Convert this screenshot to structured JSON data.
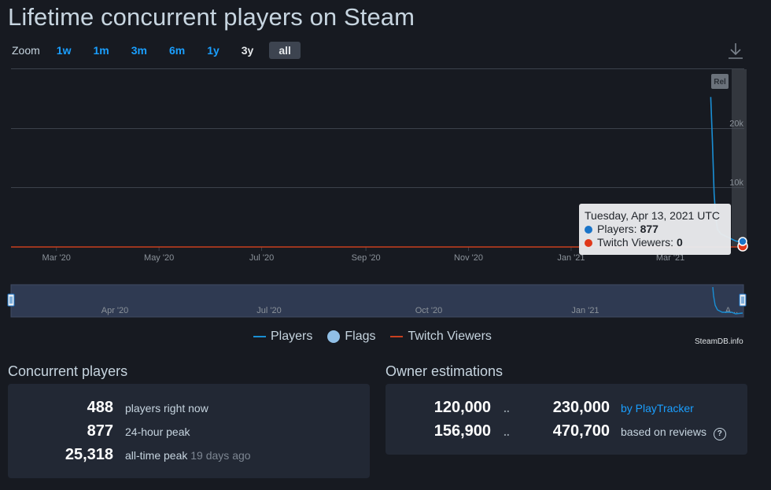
{
  "title": "Lifetime concurrent players on Steam",
  "zoom": {
    "label": "Zoom",
    "buttons": [
      "1w",
      "1m",
      "3m",
      "6m",
      "1y",
      "3y",
      "all"
    ],
    "active": "all"
  },
  "chart_data": {
    "type": "line",
    "x_ticks": [
      "Mar '20",
      "May '20",
      "Jul '20",
      "Sep '20",
      "Nov '20",
      "Jan '21",
      "Mar '21"
    ],
    "y_ticks": [
      "10k",
      "20k"
    ],
    "ylim": [
      0,
      30000
    ],
    "grid": true,
    "range_label": "Rel",
    "navigator_ticks": [
      "Apr '20",
      "Jul '20",
      "Oct '20",
      "Jan '21",
      "A..."
    ],
    "series": [
      {
        "name": "Players",
        "color": "#1a8fd5",
        "points": [
          [
            "2021-03-25",
            25318
          ],
          [
            "2021-03-26",
            18000
          ],
          [
            "2021-03-27",
            9000
          ],
          [
            "2021-03-28",
            5000
          ],
          [
            "2021-03-29",
            3000
          ],
          [
            "2021-03-31",
            2200
          ],
          [
            "2021-04-03",
            1800
          ],
          [
            "2021-04-06",
            1400
          ],
          [
            "2021-04-09",
            1000
          ],
          [
            "2021-04-11",
            900
          ],
          [
            "2021-04-13",
            877
          ]
        ]
      },
      {
        "name": "Twitch Viewers",
        "color": "#c8401f",
        "points": [
          [
            "2020-02-03",
            0
          ],
          [
            "2021-04-13",
            0
          ]
        ]
      }
    ]
  },
  "tooltip": {
    "date": "Tuesday, Apr 13, 2021 UTC",
    "players_label": "Players:",
    "players_value": "877",
    "players_color": "#1a74c8",
    "twitch_label": "Twitch Viewers:",
    "twitch_value": "0",
    "twitch_color": "#e0381a"
  },
  "legend": [
    {
      "label": "Players",
      "kind": "line",
      "color": "#1a8fd5"
    },
    {
      "label": "Flags",
      "kind": "dot",
      "color": "#90bfe6"
    },
    {
      "label": "Twitch Viewers",
      "kind": "line",
      "color": "#c8401f"
    }
  ],
  "credit": "SteamDB.info",
  "concurrent": {
    "title": "Concurrent players",
    "rows": [
      {
        "value": "488",
        "label": "players right now",
        "suffix": ""
      },
      {
        "value": "877",
        "label": "24-hour peak",
        "suffix": ""
      },
      {
        "value": "25,318",
        "label": "all-time peak",
        "suffix": "19 days ago"
      }
    ]
  },
  "owners": {
    "title": "Owner estimations",
    "rows": [
      {
        "low": "120,000",
        "sep": "..",
        "high": "230,000",
        "source": "by PlayTracker",
        "link": true
      },
      {
        "low": "156,900",
        "sep": "..",
        "high": "470,700",
        "source": "based on reviews",
        "link": false
      }
    ]
  }
}
